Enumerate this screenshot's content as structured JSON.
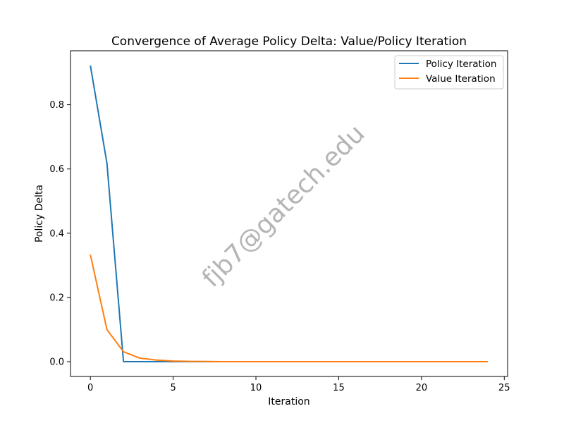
{
  "chart_data": {
    "type": "line",
    "title": "Convergence of Average Policy Delta: Value/Policy Iteration",
    "xlabel": "Iteration",
    "ylabel": "Policy Delta",
    "xlim": [
      -1.2,
      25.2
    ],
    "ylim": [
      -0.046,
      0.968
    ],
    "xticks": [
      0,
      5,
      10,
      15,
      20,
      25
    ],
    "yticks": [
      0.0,
      0.2,
      0.4,
      0.6,
      0.8
    ],
    "xtick_labels": [
      "0",
      "5",
      "10",
      "15",
      "20",
      "25"
    ],
    "ytick_labels": [
      "0.0",
      "0.2",
      "0.4",
      "0.6",
      "0.8"
    ],
    "grid": false,
    "legend_position": "top-right",
    "watermark": "fjb7@gatech.edu",
    "series": [
      {
        "name": "Policy Iteration",
        "color": "#1f77b4",
        "x": [
          0,
          1,
          2,
          3,
          4,
          5,
          6,
          7,
          8,
          9,
          10,
          11,
          12,
          13,
          14,
          15,
          16,
          17,
          18,
          19,
          20,
          21,
          22,
          23,
          24
        ],
        "y": [
          0.922,
          0.618,
          0.0,
          0.0,
          0.0,
          0.0,
          0.0,
          0.0,
          0.0,
          0.0,
          0.0,
          0.0,
          0.0,
          0.0,
          0.0,
          0.0,
          0.0,
          0.0,
          0.0,
          0.0,
          0.0,
          0.0,
          0.0,
          0.0,
          0.0
        ]
      },
      {
        "name": "Value Iteration",
        "color": "#ff7f0e",
        "x": [
          0,
          1,
          2,
          3,
          4,
          5,
          6,
          7,
          8,
          9,
          10,
          11,
          12,
          13,
          14,
          15,
          16,
          17,
          18,
          19,
          20,
          21,
          22,
          23,
          24
        ],
        "y": [
          0.333,
          0.1,
          0.031,
          0.011,
          0.005,
          0.002,
          0.001,
          0.0005,
          0.0,
          0.0,
          0.0,
          0.0,
          0.0,
          0.0,
          0.0,
          0.0,
          0.0,
          0.0,
          0.0,
          0.0,
          0.0,
          0.0,
          0.0,
          0.0,
          0.0
        ]
      }
    ]
  }
}
